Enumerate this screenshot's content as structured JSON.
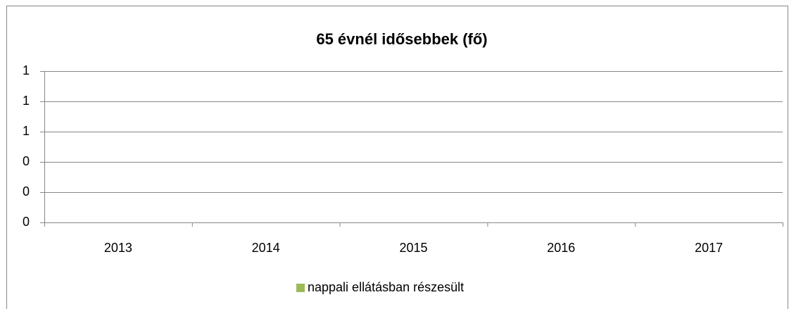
{
  "chart_data": {
    "type": "bar",
    "title": "65 évnél idősebbek (fő)",
    "categories": [
      "2013",
      "2014",
      "2015",
      "2016",
      "2017"
    ],
    "series": [
      {
        "name": "nappali ellátásban részesült",
        "color": "#9bbb59",
        "values": [
          0,
          0,
          0,
          0,
          0
        ]
      }
    ],
    "ylim": [
      0,
      1
    ],
    "yticks": [
      0,
      {
        "value": 0.2,
        "label": "0"
      },
      {
        "value": 0.4,
        "label": "0"
      },
      {
        "value": 0.6,
        "label": "1"
      },
      {
        "value": 0.8,
        "label": "1"
      },
      1
    ],
    "grid": true,
    "legend": "bottom"
  }
}
